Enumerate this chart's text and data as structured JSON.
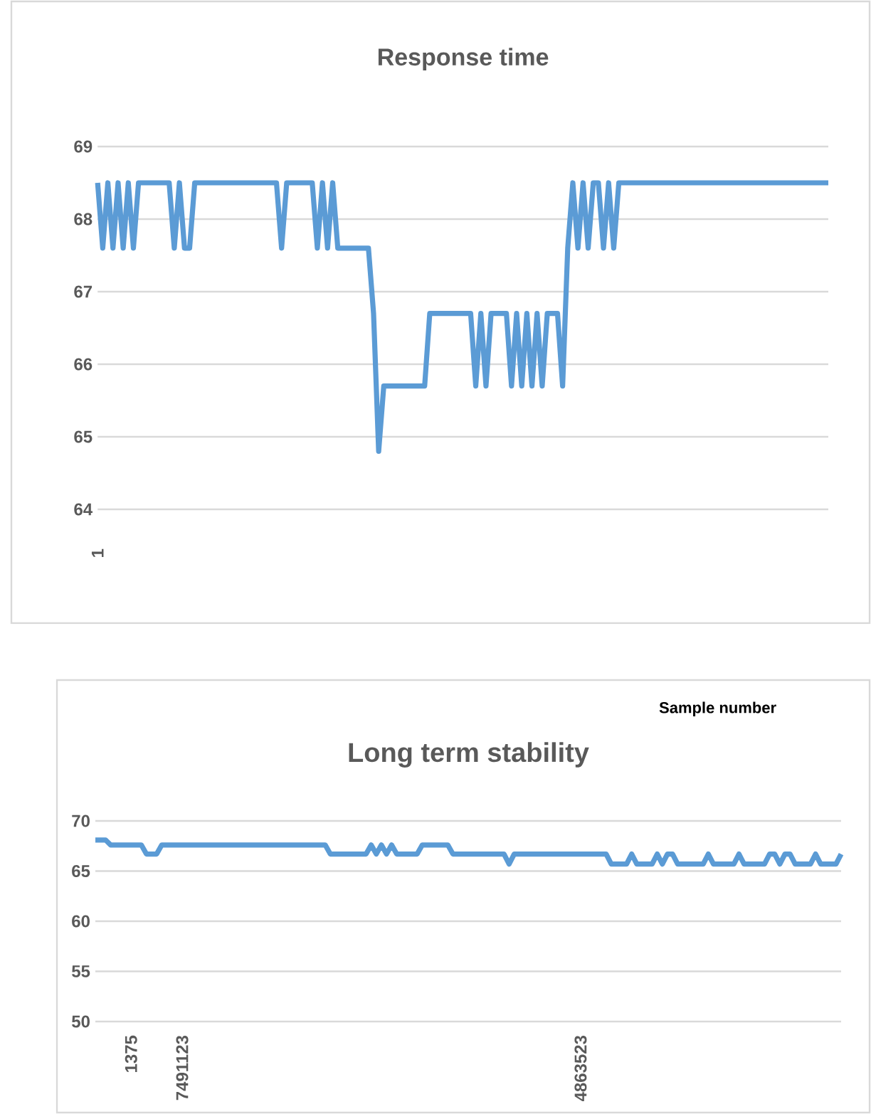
{
  "chart_data": [
    {
      "type": "line",
      "title": "Response time",
      "categories": [
        "1",
        null,
        null,
        null,
        null,
        null,
        null,
        null,
        null,
        null,
        null,
        null,
        null,
        null,
        null,
        null,
        null,
        null,
        null,
        null,
        null,
        null,
        null,
        null,
        null,
        null,
        null,
        null,
        null,
        null,
        null,
        null,
        null,
        null,
        null,
        null,
        null,
        null,
        null,
        null,
        null,
        null,
        null,
        null,
        null,
        null,
        null,
        null,
        null,
        null,
        null,
        null,
        null,
        null,
        null,
        null,
        null,
        null,
        null,
        null,
        null,
        null,
        null,
        null,
        null,
        null,
        null,
        null,
        null,
        null,
        null,
        null,
        null,
        null,
        null,
        null,
        null,
        null,
        null,
        null,
        null,
        null,
        null,
        null,
        null,
        null,
        null,
        null,
        null,
        null,
        null,
        null,
        null,
        null,
        null,
        null,
        null,
        null,
        null,
        null,
        null,
        null,
        null,
        null,
        null,
        null,
        null,
        null,
        null,
        null,
        null,
        null,
        null,
        null,
        null,
        null,
        null,
        null,
        null,
        null,
        null,
        null,
        null,
        null,
        null,
        null,
        null,
        null,
        null,
        null,
        null,
        null,
        null,
        null,
        null,
        null,
        null,
        null,
        null,
        null,
        null,
        null,
        null,
        null
      ],
      "values": [
        68.5,
        67.6,
        68.5,
        67.6,
        68.5,
        67.6,
        68.5,
        67.6,
        68.5,
        68.5,
        68.5,
        68.5,
        68.5,
        68.5,
        68.5,
        67.6,
        68.5,
        67.6,
        67.6,
        68.5,
        68.5,
        68.5,
        68.5,
        68.5,
        68.5,
        68.5,
        68.5,
        68.5,
        68.5,
        68.5,
        68.5,
        68.5,
        68.5,
        68.5,
        68.5,
        68.5,
        67.6,
        68.5,
        68.5,
        68.5,
        68.5,
        68.5,
        68.5,
        67.6,
        68.5,
        67.6,
        68.5,
        67.6,
        67.6,
        67.6,
        67.6,
        67.6,
        67.6,
        67.6,
        66.7,
        64.8,
        65.7,
        65.7,
        65.7,
        65.7,
        65.7,
        65.7,
        65.7,
        65.7,
        65.7,
        66.7,
        66.7,
        66.7,
        66.7,
        66.7,
        66.7,
        66.7,
        66.7,
        66.7,
        65.7,
        66.7,
        65.7,
        66.7,
        66.7,
        66.7,
        66.7,
        65.7,
        66.7,
        65.7,
        66.7,
        65.7,
        66.7,
        65.7,
        66.7,
        66.7,
        66.7,
        65.7,
        67.6,
        68.5,
        67.6,
        68.5,
        67.6,
        68.5,
        68.5,
        67.6,
        68.5,
        67.6,
        68.5,
        68.5,
        68.5,
        68.5,
        68.5,
        68.5,
        68.5,
        68.5,
        68.5,
        68.5,
        68.5,
        68.5,
        68.5,
        68.5,
        68.5,
        68.5,
        68.5,
        68.5,
        68.5,
        68.5,
        68.5,
        68.5,
        68.5,
        68.5,
        68.5,
        68.5,
        68.5,
        68.5,
        68.5,
        68.5,
        68.5,
        68.5,
        68.5,
        68.5,
        68.5,
        68.5,
        68.5,
        68.5,
        68.5,
        68.5,
        68.5,
        68.5
      ],
      "color": "#5b9bd5",
      "ylim": [
        64,
        69
      ],
      "yticks": [
        64,
        65,
        66,
        67,
        68,
        69
      ],
      "grid": "y"
    },
    {
      "type": "line",
      "title": "Long term stability",
      "annotations": [
        "Sample number"
      ],
      "categories": [
        null,
        null,
        null,
        null,
        null,
        null,
        null,
        "1375",
        null,
        null,
        null,
        null,
        null,
        null,
        null,
        null,
        null,
        "7491123",
        null,
        null,
        null,
        null,
        null,
        null,
        null,
        null,
        null,
        null,
        null,
        null,
        null,
        null,
        null,
        null,
        null,
        null,
        null,
        null,
        null,
        null,
        null,
        null,
        null,
        null,
        null,
        null,
        null,
        null,
        null,
        null,
        null,
        null,
        null,
        null,
        null,
        null,
        null,
        null,
        null,
        null,
        null,
        null,
        null,
        null,
        null,
        null,
        null,
        null,
        null,
        null,
        null,
        null,
        null,
        null,
        null,
        null,
        null,
        null,
        null,
        null,
        null,
        null,
        null,
        null,
        null,
        null,
        null,
        null,
        null,
        null,
        null,
        null,
        null,
        null,
        null,
        "4863523",
        null,
        null,
        null,
        null,
        null,
        null,
        null,
        null,
        null,
        null,
        null,
        null,
        null,
        null,
        null,
        null,
        null,
        null,
        null,
        null,
        null,
        null,
        null,
        null,
        null,
        null,
        null,
        null,
        null,
        null,
        null,
        null,
        null,
        null,
        null,
        null,
        null,
        null,
        null,
        null,
        null,
        null,
        null,
        null,
        null,
        null,
        null,
        null,
        null,
        null,
        null
      ],
      "values": [
        68.1,
        68.1,
        68.1,
        67.6,
        67.6,
        67.6,
        67.6,
        67.6,
        67.6,
        67.6,
        66.7,
        66.7,
        66.7,
        67.6,
        67.6,
        67.6,
        67.6,
        67.6,
        67.6,
        67.6,
        67.6,
        67.6,
        67.6,
        67.6,
        67.6,
        67.6,
        67.6,
        67.6,
        67.6,
        67.6,
        67.6,
        67.6,
        67.6,
        67.6,
        67.6,
        67.6,
        67.6,
        67.6,
        67.6,
        67.6,
        67.6,
        67.6,
        67.6,
        67.6,
        67.6,
        67.6,
        66.7,
        66.7,
        66.7,
        66.7,
        66.7,
        66.7,
        66.7,
        66.7,
        67.6,
        66.7,
        67.6,
        66.7,
        67.6,
        66.7,
        66.7,
        66.7,
        66.7,
        66.7,
        67.6,
        67.6,
        67.6,
        67.6,
        67.6,
        67.6,
        66.7,
        66.7,
        66.7,
        66.7,
        66.7,
        66.7,
        66.7,
        66.7,
        66.7,
        66.7,
        66.7,
        65.7,
        66.7,
        66.7,
        66.7,
        66.7,
        66.7,
        66.7,
        66.7,
        66.7,
        66.7,
        66.7,
        66.7,
        66.7,
        66.7,
        66.7,
        66.7,
        66.7,
        66.7,
        66.7,
        66.7,
        65.7,
        65.7,
        65.7,
        65.7,
        66.7,
        65.7,
        65.7,
        65.7,
        65.7,
        66.7,
        65.7,
        66.7,
        66.7,
        65.7,
        65.7,
        65.7,
        65.7,
        65.7,
        65.7,
        66.7,
        65.7,
        65.7,
        65.7,
        65.7,
        65.7,
        66.7,
        65.7,
        65.7,
        65.7,
        65.7,
        65.7,
        66.7,
        66.7,
        65.7,
        66.7,
        66.7,
        65.7,
        65.7,
        65.7,
        65.7,
        66.7,
        65.7,
        65.7,
        65.7,
        65.7,
        66.7
      ],
      "color": "#5b9bd5",
      "ylim": [
        50,
        70
      ],
      "yticks": [
        50,
        55,
        60,
        65,
        70
      ],
      "grid": "y"
    }
  ]
}
